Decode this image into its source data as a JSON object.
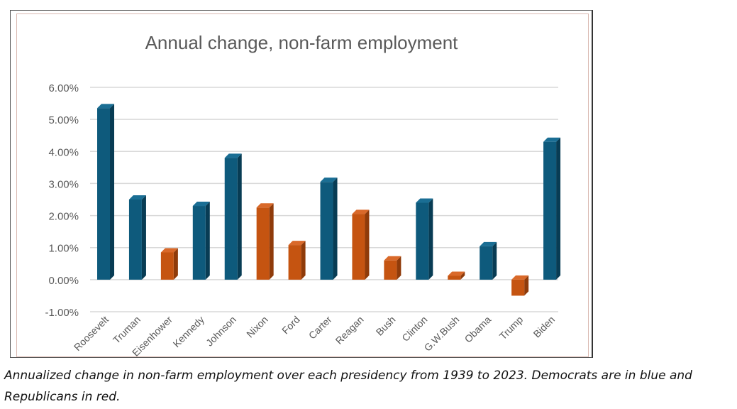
{
  "chart_data": {
    "type": "bar",
    "title": "Annual change, non-farm employment",
    "categories": [
      "Roosevelt",
      "Truman",
      "Eisenhower",
      "Kennedy",
      "Johnson",
      "Nixon",
      "Ford",
      "Carter",
      "Reagan",
      "Bush",
      "Clinton",
      "G.W.Bush",
      "Obama",
      "Trump",
      "Biden"
    ],
    "values": [
      5.35,
      2.5,
      0.85,
      2.3,
      3.8,
      2.25,
      1.08,
      3.05,
      2.05,
      0.6,
      2.4,
      0.12,
      1.04,
      -0.5,
      4.3
    ],
    "party": [
      "D",
      "D",
      "R",
      "D",
      "D",
      "R",
      "R",
      "D",
      "R",
      "R",
      "D",
      "R",
      "D",
      "R",
      "D"
    ],
    "yticks": [
      "6.00%",
      "5.00%",
      "4.00%",
      "3.00%",
      "2.00%",
      "1.00%",
      "0.00%",
      "-1.00%"
    ],
    "ytick_values": [
      6,
      5,
      4,
      3,
      2,
      1,
      0,
      -1
    ],
    "ylim": [
      -1,
      6
    ],
    "xlabel": "",
    "ylabel": "",
    "grid": true,
    "colors": {
      "D": "#0e5a7c",
      "R": "#c55411"
    }
  },
  "caption": "Annualized change in non-farm employment over each presidency from 1939 to 2023. Democrats are in blue and Republicans in red."
}
